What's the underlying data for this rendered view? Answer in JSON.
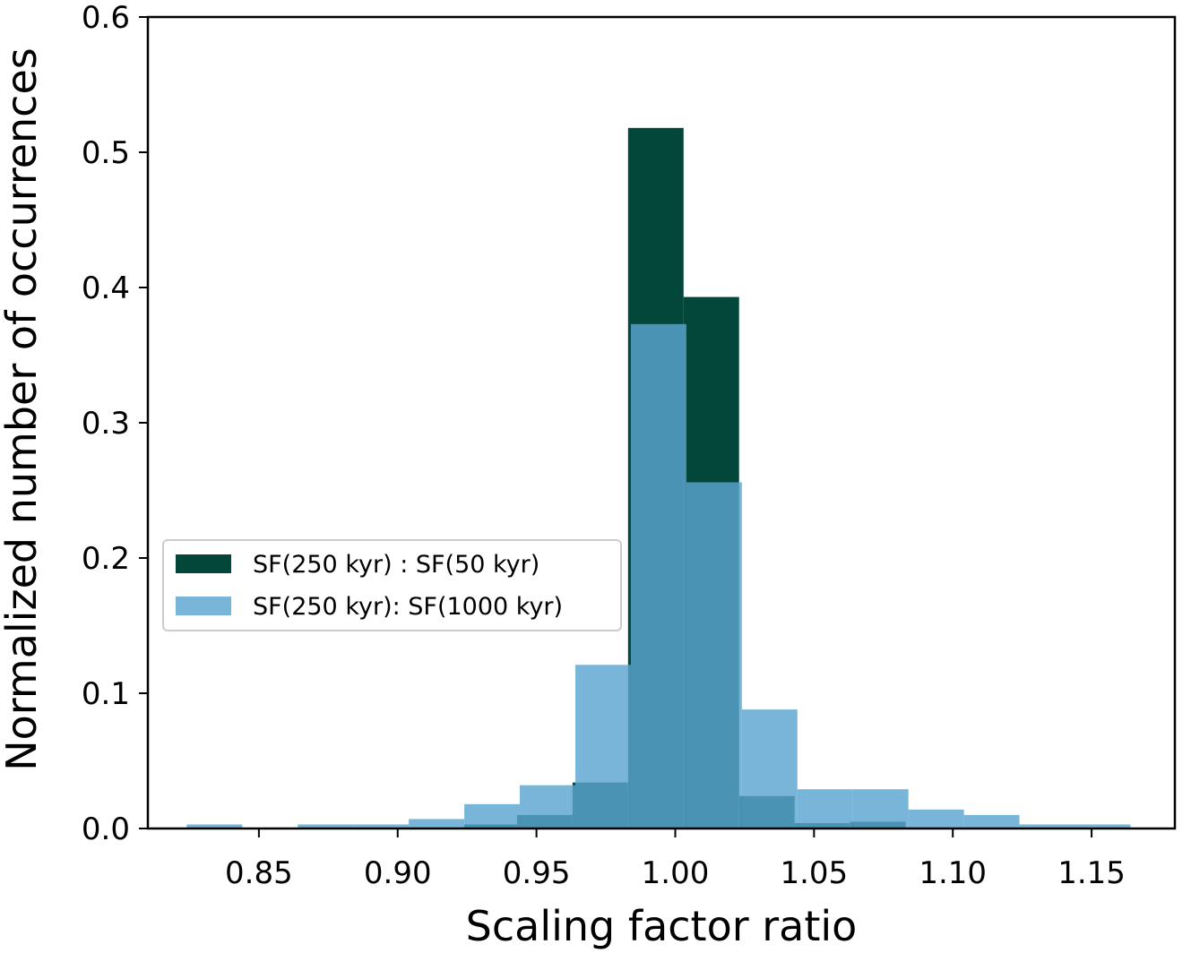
{
  "chart_data": {
    "type": "bar",
    "title": "",
    "xlabel": "Scaling factor ratio",
    "ylabel": "Normalized number of occurrences",
    "xlim": [
      0.81,
      1.18
    ],
    "ylim": [
      0,
      0.6
    ],
    "xticks": [
      0.85,
      0.9,
      0.95,
      1.0,
      1.05,
      1.1,
      1.15
    ],
    "xtick_labels": [
      "0.85",
      "0.90",
      "0.95",
      "1.00",
      "1.05",
      "1.10",
      "1.15"
    ],
    "yticks": [
      0.0,
      0.1,
      0.2,
      0.3,
      0.4,
      0.5,
      0.6
    ],
    "ytick_labels": [
      "0.0",
      "0.1",
      "0.2",
      "0.3",
      "0.4",
      "0.5",
      "0.6"
    ],
    "grid": false,
    "legend_position": "center-left",
    "series": [
      {
        "name": "SF(250 kyr) : SF(50 kyr)",
        "color": "#03463a",
        "opacity": 1,
        "bins": [
          [
            0.924,
            0.943,
            0.003
          ],
          [
            0.943,
            0.963,
            0.01
          ],
          [
            0.963,
            0.983,
            0.034
          ],
          [
            0.983,
            1.003,
            0.518
          ],
          [
            1.003,
            1.023,
            0.393
          ],
          [
            1.023,
            1.043,
            0.024
          ],
          [
            1.043,
            1.063,
            0.004
          ],
          [
            1.063,
            1.083,
            0.005
          ]
        ]
      },
      {
        "name": "SF(250 kyr): SF(1000 kyr)",
        "color": "#5ba5cf",
        "opacity": 0.82,
        "bins": [
          [
            0.824,
            0.844,
            0.003
          ],
          [
            0.864,
            0.884,
            0.003
          ],
          [
            0.884,
            0.904,
            0.003
          ],
          [
            0.904,
            0.924,
            0.007
          ],
          [
            0.924,
            0.944,
            0.018
          ],
          [
            0.944,
            0.964,
            0.032
          ],
          [
            0.964,
            0.984,
            0.121
          ],
          [
            0.984,
            1.004,
            0.373
          ],
          [
            1.004,
            1.024,
            0.256
          ],
          [
            1.024,
            1.044,
            0.088
          ],
          [
            1.044,
            1.064,
            0.029
          ],
          [
            1.064,
            1.084,
            0.029
          ],
          [
            1.084,
            1.104,
            0.014
          ],
          [
            1.104,
            1.124,
            0.01
          ],
          [
            1.124,
            1.144,
            0.003
          ],
          [
            1.144,
            1.164,
            0.003
          ]
        ]
      }
    ]
  }
}
